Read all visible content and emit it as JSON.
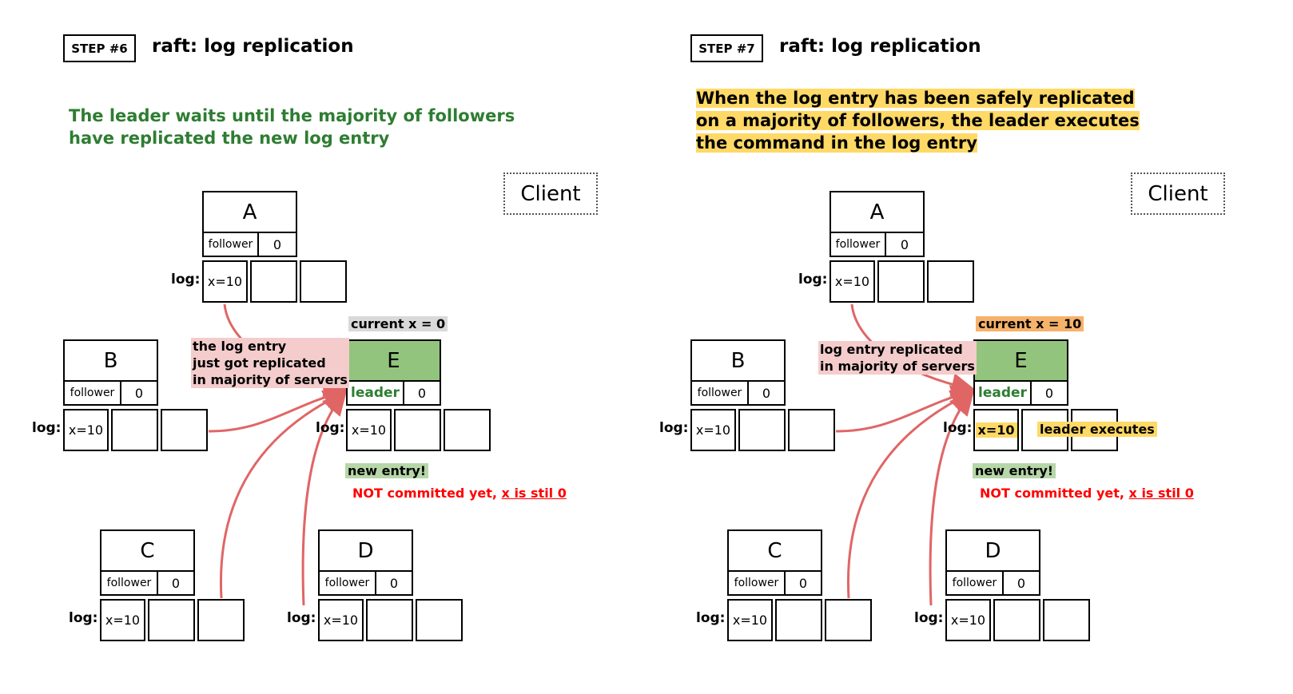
{
  "panels": [
    {
      "step_label": "STEP #6",
      "title": "raft: log replication",
      "description_lines": [
        "The leader waits until the majority of followers",
        "have replicated the new log entry"
      ],
      "description_style": "green",
      "client_label": "Client",
      "log_label": "log:",
      "nodes": {
        "A": {
          "name": "A",
          "role": "follower",
          "term": "0",
          "log": [
            "x=10",
            "",
            ""
          ]
        },
        "B": {
          "name": "B",
          "role": "follower",
          "term": "0",
          "log": [
            "x=10",
            "",
            ""
          ]
        },
        "C": {
          "name": "C",
          "role": "follower",
          "term": "0",
          "log": [
            "x=10",
            "",
            ""
          ]
        },
        "D": {
          "name": "D",
          "role": "follower",
          "term": "0",
          "log": [
            "x=10",
            "",
            ""
          ]
        },
        "E": {
          "name": "E",
          "role": "leader",
          "term": "0",
          "log": [
            "x=10",
            "",
            ""
          ]
        }
      },
      "current_x": "current x = 0",
      "current_x_color": "#d9d9d9",
      "replication_note": [
        "the log entry",
        "just got replicated",
        "in majority of servers"
      ],
      "new_entry": "new entry!",
      "not_committed": "NOT committed yet,",
      "x_still": "x is stil 0",
      "executes_label": ""
    },
    {
      "step_label": "STEP #7",
      "title": "raft: log replication",
      "description_lines": [
        "When the log entry has been safely replicated",
        "on a majority of followers, the leader executes",
        "the command in the log entry"
      ],
      "description_style": "highlight",
      "client_label": "Client",
      "log_label": "log:",
      "nodes": {
        "A": {
          "name": "A",
          "role": "follower",
          "term": "0",
          "log": [
            "x=10",
            "",
            ""
          ]
        },
        "B": {
          "name": "B",
          "role": "follower",
          "term": "0",
          "log": [
            "x=10",
            "",
            ""
          ]
        },
        "C": {
          "name": "C",
          "role": "follower",
          "term": "0",
          "log": [
            "x=10",
            "",
            ""
          ]
        },
        "D": {
          "name": "D",
          "role": "follower",
          "term": "0",
          "log": [
            "x=10",
            "",
            ""
          ]
        },
        "E": {
          "name": "E",
          "role": "leader",
          "term": "0",
          "log": [
            "x=10",
            "",
            ""
          ]
        }
      },
      "current_x": "current x = 10",
      "current_x_color": "#f6b26b",
      "replication_note": [
        "log entry replicated",
        "in majority of servers"
      ],
      "new_entry": "new entry!",
      "not_committed": "NOT committed yet,",
      "x_still": "x is stil 0",
      "executes_label": "leader executes"
    }
  ],
  "colors": {
    "leader_fill": "#93c47d",
    "leader_text": "#2e7d32",
    "arrow": "#e06666",
    "note_pink": "#f4cccc",
    "highlight_yellow": "#ffd966",
    "new_entry_green": "#b6d7a8",
    "warning_red": "#ff0000"
  }
}
